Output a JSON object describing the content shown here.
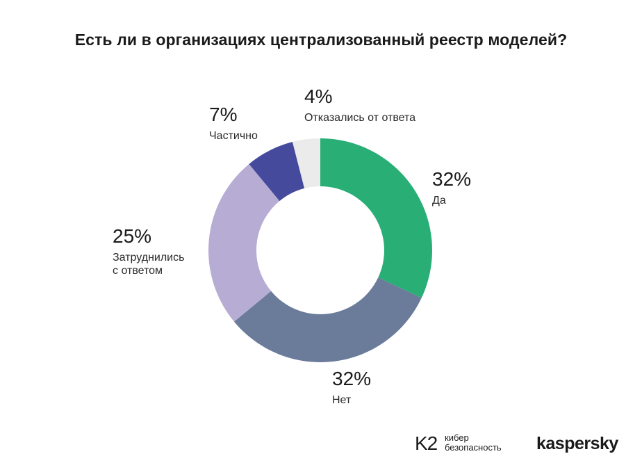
{
  "chart_data": {
    "type": "pie",
    "title": "Есть ли в организациях централизованный реестр моделей?",
    "slices": [
      {
        "label": "Да",
        "value": 32,
        "value_label": "32%",
        "color": "#29ae76"
      },
      {
        "label": "Нет",
        "value": 32,
        "value_label": "32%",
        "color": "#6b7b9a"
      },
      {
        "label": "Затруднились\nс ответом",
        "value": 25,
        "value_label": "25%",
        "color": "#b7add4"
      },
      {
        "label": "Частично",
        "value": 7,
        "value_label": "7%",
        "color": "#454a9d"
      },
      {
        "label": "Отказались от ответа",
        "value": 4,
        "value_label": "4%",
        "color": "#ebebeb"
      }
    ]
  },
  "logos": {
    "k2_mark": "K2",
    "k2_text": "кибер\nбезопасность",
    "kaspersky": "kaspersky"
  }
}
